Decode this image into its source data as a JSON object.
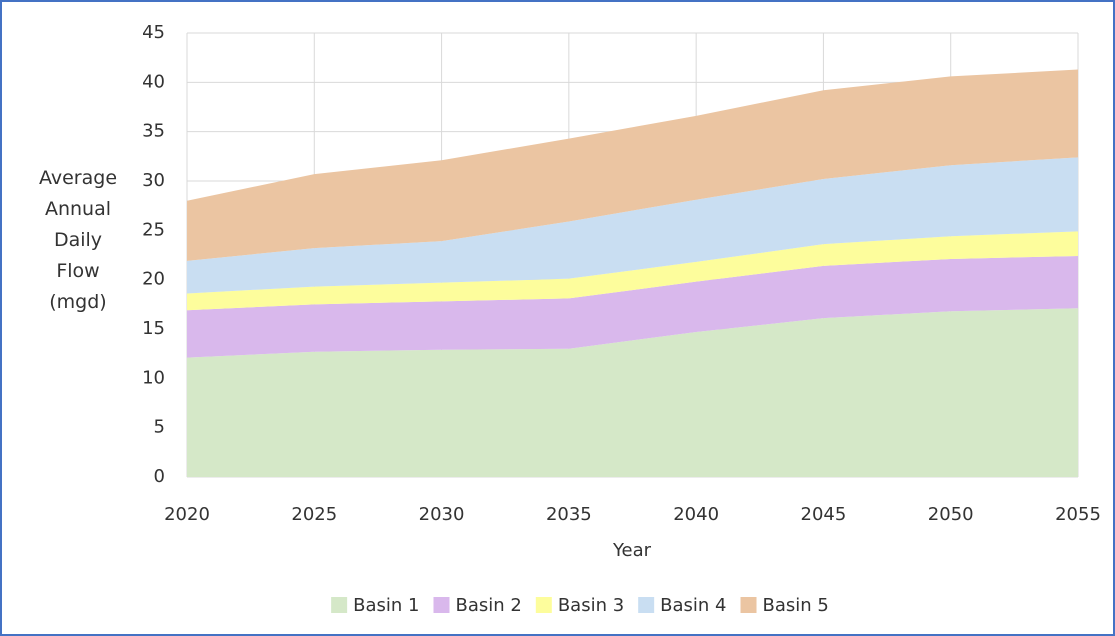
{
  "chart_data": {
    "type": "stacked-area",
    "x": [
      2020,
      2025,
      2030,
      2035,
      2040,
      2045,
      2050,
      2055
    ],
    "xlabel": "Year",
    "ylabel": "Average Annual Daily Flow (mgd)",
    "xlim": [
      2020,
      2055
    ],
    "xticks": [
      2020,
      2025,
      2030,
      2035,
      2040,
      2045,
      2050,
      2055
    ],
    "ylim": [
      0,
      45
    ],
    "yticks": [
      0,
      5,
      10,
      15,
      20,
      25,
      30,
      35,
      40,
      45
    ],
    "grid": true,
    "legend": "bottom",
    "series": [
      {
        "name": "Basin 1",
        "color": "#d5e8c8",
        "values": [
          12.1,
          12.7,
          12.9,
          13.0,
          14.7,
          16.1,
          16.8,
          17.1
        ]
      },
      {
        "name": "Basin 2",
        "color": "#d9b8ec",
        "values": [
          4.8,
          4.8,
          4.9,
          5.1,
          5.1,
          5.3,
          5.3,
          5.3
        ]
      },
      {
        "name": "Basin 3",
        "color": "#fdfd9c",
        "values": [
          1.7,
          1.8,
          1.9,
          2.0,
          2.0,
          2.2,
          2.3,
          2.5
        ]
      },
      {
        "name": "Basin 4",
        "color": "#c9def2",
        "values": [
          3.3,
          3.9,
          4.2,
          5.8,
          6.3,
          6.6,
          7.2,
          7.5
        ]
      },
      {
        "name": "Basin 5",
        "color": "#ebc5a2",
        "values": [
          6.1,
          7.5,
          8.2,
          8.4,
          8.5,
          9.0,
          9.0,
          8.9
        ]
      }
    ]
  }
}
